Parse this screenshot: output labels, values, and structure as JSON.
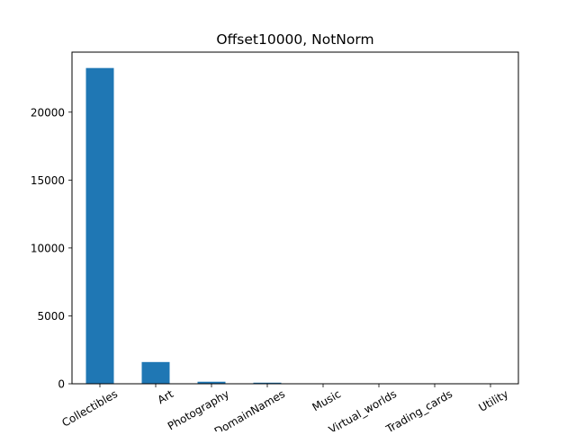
{
  "chart_data": {
    "type": "bar",
    "title": "Offset10000, NotNorm",
    "xlabel": "",
    "ylabel": "",
    "categories": [
      "Collectibles",
      "Art",
      "Photography",
      "DomainNames",
      "Music",
      "Virtual_worlds",
      "Trading_cards",
      "Utility"
    ],
    "values": [
      23250,
      1600,
      150,
      80,
      15,
      10,
      8,
      5
    ],
    "ylim": [
      0,
      24420
    ],
    "yticks": [
      0,
      5000,
      10000,
      15000,
      20000
    ],
    "ytick_labels": [
      "0",
      "5000",
      "10000",
      "15000",
      "20000"
    ],
    "bar_color": "#1f77b4",
    "grid": false,
    "legend": "none",
    "xtick_rotation": "30 degrees"
  }
}
